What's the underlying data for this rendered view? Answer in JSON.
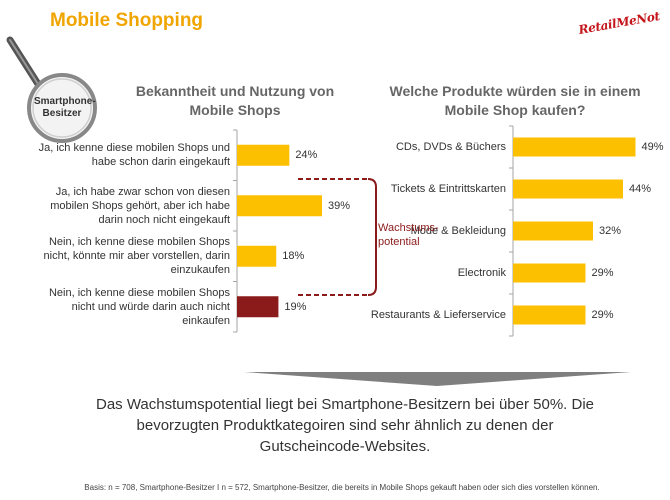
{
  "page_title": "Mobile Shopping",
  "brand_logo": "RetailMeNot",
  "lens_label": "Smartphone-Besitzer",
  "colors": {
    "accent": "#fcc000",
    "highlight": "#8b1a1a",
    "title": "#f0a500",
    "axis": "#a6a6a6"
  },
  "chart_data": [
    {
      "type": "bar",
      "orientation": "horizontal",
      "title": "Bekanntheit und Nutzung von Mobile Shops",
      "categories": [
        "Ja, ich kenne diese mobilen Shops und habe schon darin eingekauft",
        "Ja, ich habe zwar schon von diesen mobilen Shops gehört, aber ich habe darin noch nicht eingekauft",
        "Nein, ich kenne diese mobilen Shops nicht, könnte mir aber vorstellen, darin einzukaufen",
        "Nein, ich kenne diese mobilen Shops nicht und würde darin auch nicht einkaufen"
      ],
      "values": [
        24,
        39,
        18,
        19
      ],
      "value_labels": [
        "24%",
        "39%",
        "18%",
        "19%"
      ],
      "bar_colors": [
        "#fcc000",
        "#fcc000",
        "#fcc000",
        "#8b1a1a"
      ],
      "xlim": [
        0,
        50
      ],
      "annotation": "Wachstums-potential"
    },
    {
      "type": "bar",
      "orientation": "horizontal",
      "title": "Welche Produkte würden sie in einem Mobile Shop kaufen?",
      "categories": [
        "CDs, DVDs & Büchers",
        "Tickets & Eintrittskarten",
        "Mode & Bekleidung",
        "Electronik",
        "Restaurants & Lieferservice"
      ],
      "values": [
        49,
        44,
        32,
        29,
        29
      ],
      "value_labels": [
        "49%",
        "44%",
        "32%",
        "29%",
        "29%"
      ],
      "bar_colors": [
        "#fcc000",
        "#fcc000",
        "#fcc000",
        "#fcc000",
        "#fcc000"
      ],
      "xlim": [
        0,
        52
      ]
    }
  ],
  "conclusion": "Das Wachstumspotential liegt bei Smartphone-Besitzern bei über 50%. Die bevorzugten Produktkategoiren sind sehr ähnlich zu denen der Gutscheincode-Websites.",
  "footnote": "Basis: n = 708, Smartphone-Besitzer I n = 572, Smartphone-Besitzer, die bereits in Mobile Shops gekauft haben oder sich dies vorstellen können."
}
